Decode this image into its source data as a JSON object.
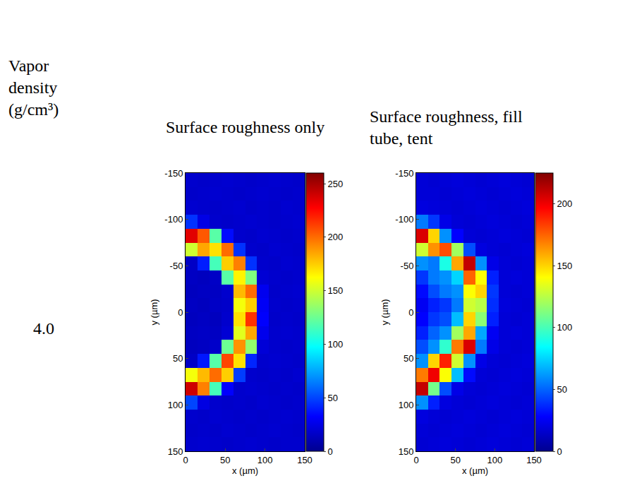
{
  "header": {
    "quantity": "Vapor density (g/cm³)",
    "value": "4.0"
  },
  "chart_data": [
    {
      "type": "heatmap",
      "title": "Surface roughness only",
      "x_label": "x (µm)",
      "y_label": "y (µm)",
      "color": "jet",
      "xlim": [
        0,
        150
      ],
      "ylim": [
        150,
        -150
      ],
      "xticks": [
        0,
        50,
        100,
        150
      ],
      "yticks": [
        -150,
        -100,
        -50,
        0,
        50,
        100,
        150
      ],
      "colorbar_range": [
        0,
        260
      ],
      "colorbar_ticks": [
        0,
        50,
        100,
        150,
        200,
        250
      ],
      "x": [
        7.5,
        22.5,
        37.5,
        52.5,
        67.5,
        82.5,
        97.5,
        112.5,
        127.5,
        142.5
      ],
      "y": [
        -142.5,
        -127.5,
        -112.5,
        -97.5,
        -82.5,
        -67.5,
        -52.5,
        -37.5,
        -22.5,
        -7.5,
        7.5,
        22.5,
        37.5,
        52.5,
        67.5,
        82.5,
        97.5,
        112.5,
        127.5,
        142.5
      ],
      "z": [
        [
          18,
          17,
          18,
          19,
          18,
          17,
          18,
          19,
          18,
          17
        ],
        [
          17,
          18,
          19,
          18,
          17,
          18,
          19,
          18,
          17,
          18
        ],
        [
          19,
          18,
          17,
          18,
          19,
          17,
          18,
          17,
          19,
          18
        ],
        [
          45,
          25,
          18,
          17,
          18,
          19,
          18,
          17,
          18,
          19
        ],
        [
          235,
          205,
          120,
          35,
          18,
          17,
          19,
          18,
          17,
          18
        ],
        [
          150,
          185,
          170,
          200,
          45,
          18,
          17,
          19,
          18,
          17
        ],
        [
          16,
          40,
          115,
          175,
          195,
          45,
          18,
          17,
          19,
          18
        ],
        [
          15,
          14,
          16,
          120,
          165,
          130,
          20,
          18,
          17,
          18
        ],
        [
          14,
          15,
          15,
          18,
          180,
          200,
          28,
          17,
          18,
          19
        ],
        [
          15,
          14,
          16,
          17,
          160,
          175,
          30,
          18,
          17,
          18
        ],
        [
          14,
          15,
          14,
          18,
          170,
          215,
          32,
          17,
          18,
          17
        ],
        [
          15,
          16,
          15,
          20,
          155,
          185,
          27,
          18,
          19,
          18
        ],
        [
          14,
          15,
          17,
          125,
          190,
          135,
          21,
          18,
          17,
          18
        ],
        [
          16,
          38,
          120,
          210,
          170,
          42,
          18,
          19,
          18,
          17
        ],
        [
          160,
          180,
          200,
          175,
          48,
          18,
          17,
          18,
          17,
          19
        ],
        [
          240,
          195,
          115,
          32,
          18,
          19,
          18,
          17,
          18,
          17
        ],
        [
          50,
          24,
          18,
          17,
          18,
          17,
          19,
          18,
          17,
          18
        ],
        [
          18,
          17,
          19,
          18,
          17,
          18,
          17,
          18,
          19,
          18
        ],
        [
          17,
          18,
          17,
          19,
          18,
          17,
          18,
          19,
          18,
          17
        ],
        [
          18,
          19,
          18,
          17,
          18,
          19,
          18,
          17,
          18,
          18
        ]
      ]
    },
    {
      "type": "heatmap",
      "title": "Surface roughness, fill tube, tent",
      "x_label": "x (µm)",
      "y_label": "y (µm)",
      "color": "jet",
      "xlim": [
        0,
        150
      ],
      "ylim": [
        150,
        -150
      ],
      "xticks": [
        0,
        50,
        100,
        150
      ],
      "yticks": [
        -150,
        -100,
        -50,
        0,
        50,
        100,
        150
      ],
      "colorbar_range": [
        0,
        225
      ],
      "colorbar_ticks": [
        0,
        50,
        100,
        150,
        200
      ],
      "x": [
        7.5,
        22.5,
        37.5,
        52.5,
        67.5,
        82.5,
        97.5,
        112.5,
        127.5,
        142.5
      ],
      "y": [
        -142.5,
        -127.5,
        -112.5,
        -97.5,
        -82.5,
        -67.5,
        -52.5,
        -37.5,
        -22.5,
        -7.5,
        7.5,
        22.5,
        37.5,
        52.5,
        67.5,
        82.5,
        97.5,
        112.5,
        127.5,
        142.5
      ],
      "z": [
        [
          18,
          17,
          18,
          19,
          18,
          17,
          18,
          19,
          18,
          17
        ],
        [
          18,
          18,
          17,
          18,
          19,
          18,
          17,
          18,
          19,
          18
        ],
        [
          20,
          19,
          18,
          17,
          18,
          19,
          18,
          17,
          18,
          19
        ],
        [
          55,
          40,
          22,
          18,
          17,
          18,
          19,
          18,
          17,
          18
        ],
        [
          205,
          150,
          60,
          28,
          18,
          17,
          18,
          19,
          18,
          17
        ],
        [
          130,
          165,
          180,
          120,
          45,
          20,
          18,
          17,
          18,
          19
        ],
        [
          60,
          55,
          90,
          160,
          210,
          60,
          22,
          18,
          17,
          18
        ],
        [
          40,
          55,
          60,
          75,
          175,
          140,
          35,
          18,
          19,
          18
        ],
        [
          30,
          45,
          55,
          60,
          140,
          150,
          40,
          18,
          17,
          18
        ],
        [
          25,
          35,
          40,
          55,
          130,
          125,
          38,
          19,
          18,
          17
        ],
        [
          28,
          40,
          45,
          70,
          150,
          115,
          35,
          18,
          17,
          18
        ],
        [
          35,
          50,
          60,
          120,
          160,
          65,
          25,
          18,
          19,
          18
        ],
        [
          45,
          60,
          95,
          170,
          205,
          55,
          22,
          18,
          17,
          18
        ],
        [
          60,
          150,
          190,
          130,
          60,
          22,
          18,
          17,
          18,
          19
        ],
        [
          170,
          200,
          140,
          70,
          30,
          18,
          17,
          18,
          19,
          18
        ],
        [
          210,
          110,
          45,
          22,
          18,
          17,
          18,
          19,
          18,
          17
        ],
        [
          60,
          35,
          20,
          18,
          17,
          18,
          19,
          18,
          17,
          18
        ],
        [
          20,
          18,
          17,
          18,
          19,
          18,
          17,
          18,
          19,
          18
        ],
        [
          18,
          17,
          18,
          19,
          18,
          17,
          18,
          19,
          18,
          17
        ],
        [
          17,
          18,
          19,
          18,
          17,
          18,
          19,
          18,
          17,
          18
        ]
      ]
    }
  ]
}
